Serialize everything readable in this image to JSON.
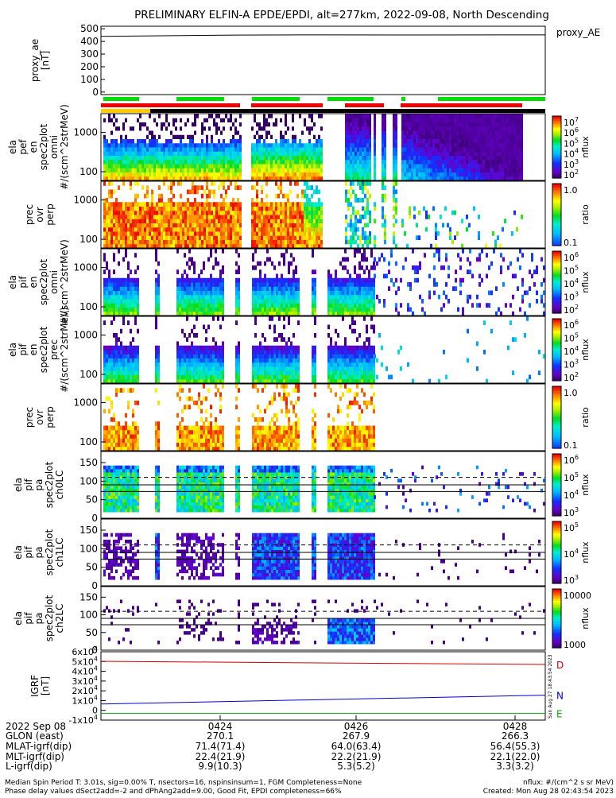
{
  "title": "PRELIMINARY ELFIN-A EPDE/EPDI, alt=277km, 2022-09-08, North Descending",
  "colors": {
    "ae_line": "#000000",
    "bar_green": "#00dd00",
    "bar_red": "#ee0000",
    "bar_yellow": "#ffcc00",
    "igrf_d": "#cc0000",
    "igrf_n": "#0000cc",
    "igrf_e": "#00aa00"
  },
  "chart_data": [
    {
      "id": "proxy_ae",
      "type": "line",
      "ylabel": [
        "proxy_ae",
        "[nT]"
      ],
      "right_label": "proxy_AE",
      "ylim": [
        -20,
        520
      ],
      "yticks": [
        0,
        100,
        200,
        300,
        400,
        500
      ],
      "x_frac": [
        0.0,
        0.3,
        0.5,
        0.7,
        1.0
      ],
      "values": [
        440,
        450,
        452,
        451,
        452
      ]
    },
    {
      "id": "ela_pef_en_spec2plot_omni",
      "type": "heatmap",
      "ylabel": [
        "ela",
        "pef",
        "en",
        "spec2plot",
        "omni",
        "#/(scm^2strMeV)"
      ],
      "yticks": [
        100,
        1000
      ],
      "cbar": {
        "type": "rainbow",
        "labels": [
          "10^7",
          "10^6",
          "10^5",
          "10^4",
          "10^3",
          "10^2"
        ],
        "title": "nflux"
      }
    },
    {
      "id": "ela_pef_prec_ovr_perp",
      "type": "heatmap",
      "ylabel": [
        "prec",
        "ovr",
        "perp"
      ],
      "yticks": [
        100,
        1000
      ],
      "cbar": {
        "type": "ratio",
        "labels": [
          "1.0",
          "0.1"
        ],
        "title": "ratio"
      }
    },
    {
      "id": "ela_pif_en_spec2plot_omni",
      "type": "heatmap",
      "ylabel": [
        "ela",
        "pif",
        "en",
        "spec2plot",
        "omni",
        "#/(scm^2strMeV)"
      ],
      "yticks": [
        100,
        1000
      ],
      "cbar": {
        "type": "rainbow",
        "labels": [
          "10^6",
          "10^5",
          "10^4",
          "10^3",
          "10^2"
        ],
        "title": "nflux"
      }
    },
    {
      "id": "ela_pif_en_spec2plot_prec",
      "type": "heatmap",
      "ylabel": [
        "ela",
        "pif",
        "en",
        "spec2plot",
        "prec",
        "#/(scm^2strMeV)"
      ],
      "yticks": [
        100,
        1000
      ],
      "cbar": {
        "type": "rainbow",
        "labels": [
          "10^6",
          "10^5",
          "10^4",
          "10^3",
          "10^2"
        ],
        "title": "nflux"
      }
    },
    {
      "id": "ela_pif_prec_ovr_perp",
      "type": "heatmap",
      "ylabel": [
        "prec",
        "ovr",
        "perp"
      ],
      "yticks": [
        100,
        1000
      ],
      "cbar": {
        "type": "ratio",
        "labels": [
          "1.0",
          "0.1"
        ],
        "title": "ratio"
      }
    },
    {
      "id": "ela_pif_pa_spec2plot_ch0LC",
      "type": "heatmap",
      "ylabel": [
        "ela",
        "pif",
        "pa",
        "spec2plot",
        "ch0LC"
      ],
      "yticks": [
        0,
        50,
        100,
        150
      ],
      "cbar": {
        "type": "rainbow",
        "labels": [
          "10^6",
          "10^5",
          "10^4",
          "10^3"
        ],
        "title": "nflux"
      }
    },
    {
      "id": "ela_pif_pa_spec2plot_ch1LC",
      "type": "heatmap",
      "ylabel": [
        "ela",
        "pif",
        "pa",
        "spec2plot",
        "ch1LC"
      ],
      "yticks": [
        0,
        50,
        100,
        150
      ],
      "cbar": {
        "type": "rainbow",
        "labels": [
          "10^5",
          "10^4",
          "10^3"
        ],
        "title": "nflux"
      }
    },
    {
      "id": "ela_pif_pa_spec2plot_ch2LC",
      "type": "heatmap",
      "ylabel": [
        "ela",
        "pif",
        "pa",
        "spec2plot",
        "ch2LC"
      ],
      "yticks": [
        0,
        50,
        100,
        150
      ],
      "cbar": {
        "type": "rainbow",
        "labels": [
          "10000",
          "1000"
        ],
        "title": "nflux"
      }
    },
    {
      "id": "igrf",
      "type": "line",
      "ylabel": [
        "IGRF",
        "[nT]"
      ],
      "yticks": [
        "-1x10^4",
        "0",
        "1x10^4",
        "2x10^4",
        "3x10^4",
        "4x10^4",
        "5x10^4",
        "6x10^4"
      ],
      "ylim": [
        -10000,
        60000
      ],
      "x_frac": [
        0.0,
        1.0
      ],
      "series": [
        {
          "name": "D",
          "values": [
            50200,
            47000
          ]
        },
        {
          "name": "N",
          "values": [
            6500,
            15500
          ]
        },
        {
          "name": "E",
          "values": [
            -3200,
            -3200
          ]
        }
      ],
      "side_note": "Sun Aug 27 18:43:54 2023"
    }
  ],
  "xaxis": {
    "date": "2022 Sep 08",
    "ticks": [
      "0424",
      "0426",
      "0428"
    ],
    "rows": [
      {
        "label": "GLON (east)",
        "values": [
          "270.1",
          "267.9",
          "266.3"
        ]
      },
      {
        "label": "MLAT-igrf(dip)",
        "values": [
          "71.4(71.4)",
          "64.0(63.4)",
          "56.4(55.3)"
        ]
      },
      {
        "label": "MLT-igrf(dip)",
        "values": [
          "22.4(21.9)",
          "22.2(21.9)",
          "22.1(22.0)"
        ]
      },
      {
        "label": "L-igrf(dip)",
        "values": [
          "9.9(10.3)",
          "5.3(5.2)",
          "3.3(3.2)"
        ]
      }
    ]
  },
  "footer": {
    "line1": "Median Spin Period T: 3.01s, sig=0.00% T, nsectors=16, nspinsinsum=1, FGM Completeness=None",
    "line2": "Phase delay values dSect2add=-2 and dPhAng2add=9.00, Good Fit, EPDI completeness=66%",
    "right1": "nflux: #/(cm^2 s sr MeV)",
    "right2": "Created: Mon Aug 28 02:43:54 2023"
  }
}
